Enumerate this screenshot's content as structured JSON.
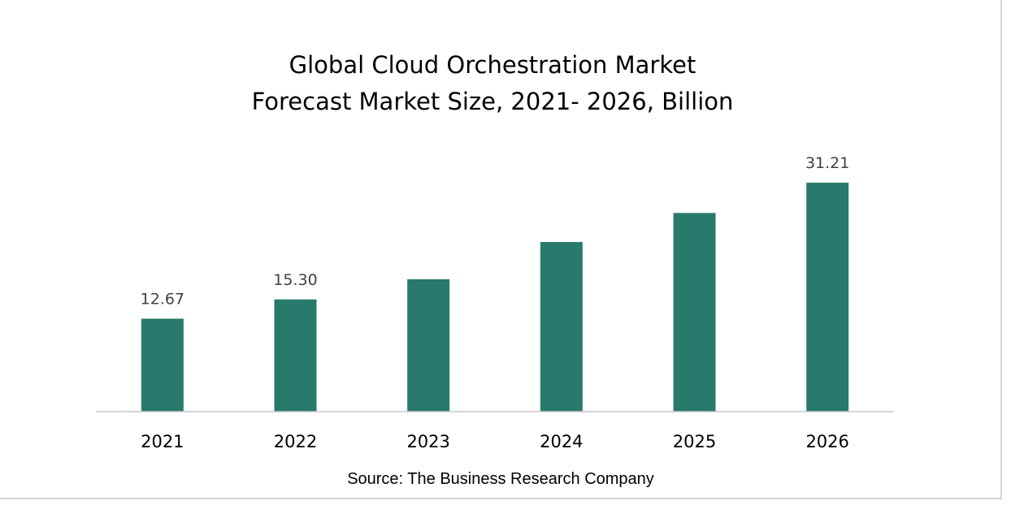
{
  "chart_data": {
    "type": "bar",
    "title": "Global Cloud Orchestration Market",
    "subtitle": "Forecast Market Size, 2021- 2026, Billion",
    "source": "Source: The Business Research Company",
    "categories": [
      "2021",
      "2022",
      "2023",
      "2024",
      "2025",
      "2026"
    ],
    "values": [
      12.67,
      15.3,
      18.05,
      23.12,
      27.08,
      31.21
    ],
    "data_labels": [
      "12.67",
      "15.30",
      "",
      "",
      "",
      "31.21"
    ],
    "ylim": [
      0,
      35
    ],
    "grid": false,
    "legend": "none",
    "bar_color": "#287A6C",
    "axis_color": "#c8c8c8"
  }
}
